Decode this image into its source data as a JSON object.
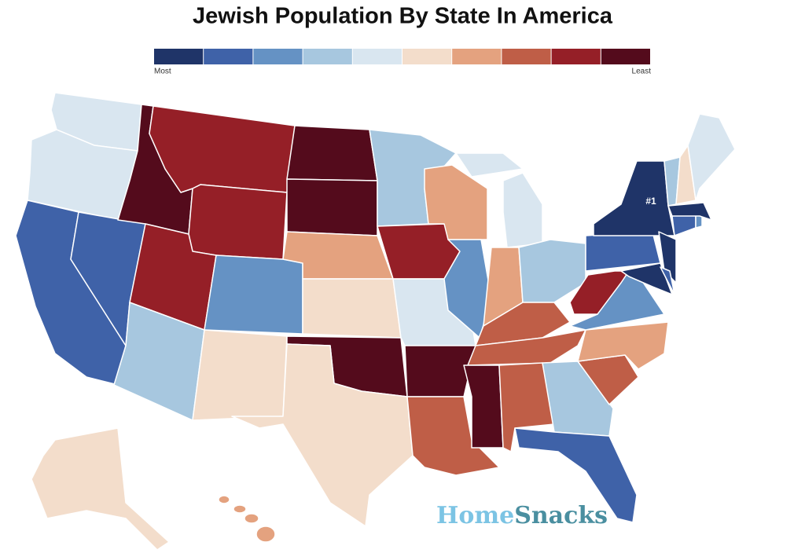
{
  "title": "Jewish Population By State In America",
  "legend": {
    "colors": [
      "#1f3468",
      "#3f62a8",
      "#6592c4",
      "#a7c7df",
      "#d9e6f0",
      "#f3ddcb",
      "#e4a27f",
      "#bf5e47",
      "#951f27",
      "#540b1c"
    ],
    "low_label": "Most",
    "high_label": "Least"
  },
  "rank_label": "#1",
  "logo": {
    "part1": "Home",
    "part2": "Snacks",
    "color1": "#7cc4e4",
    "color2": "#4a8fa0"
  }
}
